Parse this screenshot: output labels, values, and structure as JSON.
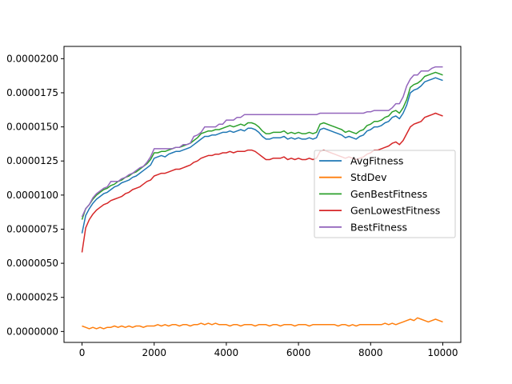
{
  "chart_data": {
    "type": "line",
    "title": "",
    "xlabel": "",
    "ylabel": "",
    "xlim": [
      -500,
      10500
    ],
    "ylim": [
      -8e-07,
      2.09e-05
    ],
    "x_ticks": [
      0,
      2000,
      4000,
      6000,
      8000,
      10000
    ],
    "x_tick_labels": [
      "0",
      "2000",
      "4000",
      "6000",
      "8000",
      "10000"
    ],
    "y_ticks": [
      0.0,
      2.5e-06,
      5e-06,
      7.5e-06,
      1e-05,
      1.25e-05,
      1.5e-05,
      1.75e-05,
      2e-05
    ],
    "y_tick_labels": [
      "0.0000000",
      "0.0000025",
      "0.0000050",
      "0.0000075",
      "0.0000100",
      "0.0000125",
      "0.0000150",
      "0.0000175",
      "0.0000200"
    ],
    "grid": false,
    "legend_position": "center-right",
    "x": [
      0,
      100,
      200,
      300,
      400,
      500,
      600,
      700,
      800,
      900,
      1000,
      1100,
      1200,
      1300,
      1400,
      1500,
      1600,
      1700,
      1800,
      1900,
      2000,
      2100,
      2200,
      2300,
      2400,
      2500,
      2600,
      2700,
      2800,
      2900,
      3000,
      3100,
      3200,
      3300,
      3400,
      3500,
      3600,
      3700,
      3800,
      3900,
      4000,
      4100,
      4200,
      4300,
      4400,
      4500,
      4600,
      4700,
      4800,
      4900,
      5000,
      5100,
      5200,
      5300,
      5400,
      5500,
      5600,
      5700,
      5800,
      5900,
      6000,
      6100,
      6200,
      6300,
      6400,
      6500,
      6600,
      6700,
      6800,
      6900,
      7000,
      7100,
      7200,
      7300,
      7400,
      7500,
      7600,
      7700,
      7800,
      7900,
      8000,
      8100,
      8200,
      8300,
      8400,
      8500,
      8600,
      8700,
      8800,
      8900,
      9000,
      9100,
      9200,
      9300,
      9400,
      9500,
      9600,
      9700,
      9800,
      9900,
      10000
    ],
    "series": [
      {
        "name": "AvgFitness",
        "color": "#1f77b4",
        "values": [
          7.2e-06,
          8.5e-06,
          9e-06,
          9.4e-06,
          9.7e-06,
          9.9e-06,
          1.01e-05,
          1.02e-05,
          1.04e-05,
          1.06e-05,
          1.07e-05,
          1.09e-05,
          1.1e-05,
          1.11e-05,
          1.13e-05,
          1.14e-05,
          1.16e-05,
          1.18e-05,
          1.2e-05,
          1.22e-05,
          1.27e-05,
          1.28e-05,
          1.29e-05,
          1.28e-05,
          1.3e-05,
          1.31e-05,
          1.32e-05,
          1.32e-05,
          1.33e-05,
          1.34e-05,
          1.35e-05,
          1.37e-05,
          1.39e-05,
          1.41e-05,
          1.43e-05,
          1.43e-05,
          1.44e-05,
          1.44e-05,
          1.45e-05,
          1.46e-05,
          1.46e-05,
          1.47e-05,
          1.46e-05,
          1.47e-05,
          1.48e-05,
          1.47e-05,
          1.49e-05,
          1.49e-05,
          1.48e-05,
          1.46e-05,
          1.43e-05,
          1.41e-05,
          1.41e-05,
          1.42e-05,
          1.42e-05,
          1.42e-05,
          1.43e-05,
          1.41e-05,
          1.42e-05,
          1.41e-05,
          1.42e-05,
          1.41e-05,
          1.41e-05,
          1.42e-05,
          1.41e-05,
          1.42e-05,
          1.48e-05,
          1.49e-05,
          1.48e-05,
          1.47e-05,
          1.46e-05,
          1.45e-05,
          1.44e-05,
          1.42e-05,
          1.43e-05,
          1.42e-05,
          1.41e-05,
          1.43e-05,
          1.44e-05,
          1.47e-05,
          1.48e-05,
          1.5e-05,
          1.5e-05,
          1.51e-05,
          1.53e-05,
          1.54e-05,
          1.57e-05,
          1.58e-05,
          1.56e-05,
          1.6e-05,
          1.66e-05,
          1.75e-05,
          1.77e-05,
          1.78e-05,
          1.8e-05,
          1.83e-05,
          1.84e-05,
          1.85e-05,
          1.86e-05,
          1.85e-05,
          1.84e-05
        ]
      },
      {
        "name": "StdDev",
        "color": "#ff7f0e",
        "values": [
          4e-07,
          3e-07,
          2e-07,
          3e-07,
          2e-07,
          3e-07,
          2e-07,
          3e-07,
          3e-07,
          4e-07,
          3e-07,
          4e-07,
          3e-07,
          4e-07,
          3e-07,
          4e-07,
          4e-07,
          3e-07,
          4e-07,
          4e-07,
          4e-07,
          5e-07,
          4e-07,
          5e-07,
          4e-07,
          5e-07,
          5e-07,
          4e-07,
          5e-07,
          5e-07,
          4e-07,
          5e-07,
          5e-07,
          6e-07,
          5e-07,
          6e-07,
          5e-07,
          6e-07,
          5e-07,
          5e-07,
          5e-07,
          4e-07,
          5e-07,
          5e-07,
          4e-07,
          5e-07,
          5e-07,
          5e-07,
          4e-07,
          5e-07,
          5e-07,
          5e-07,
          4e-07,
          5e-07,
          5e-07,
          4e-07,
          5e-07,
          5e-07,
          5e-07,
          4e-07,
          5e-07,
          5e-07,
          5e-07,
          4e-07,
          5e-07,
          5e-07,
          5e-07,
          5e-07,
          5e-07,
          5e-07,
          5e-07,
          4e-07,
          5e-07,
          5e-07,
          4e-07,
          5e-07,
          4e-07,
          5e-07,
          5e-07,
          5e-07,
          5e-07,
          5e-07,
          5e-07,
          5e-07,
          6e-07,
          5e-07,
          6e-07,
          5e-07,
          6e-07,
          7e-07,
          8e-07,
          9e-07,
          8e-07,
          1e-06,
          9e-07,
          8e-07,
          7e-07,
          8e-07,
          9e-07,
          8e-07,
          7e-07
        ]
      },
      {
        "name": "GenBestFitness",
        "color": "#2ca02c",
        "values": [
          8.2e-06,
          9e-06,
          9.3e-06,
          9.7e-06,
          1e-05,
          1.02e-05,
          1.04e-05,
          1.05e-05,
          1.07e-05,
          1.08e-05,
          1.1e-05,
          1.11e-05,
          1.13e-05,
          1.14e-05,
          1.16e-05,
          1.17e-05,
          1.19e-05,
          1.21e-05,
          1.23e-05,
          1.26e-05,
          1.31e-05,
          1.31e-05,
          1.32e-05,
          1.32e-05,
          1.33e-05,
          1.34e-05,
          1.35e-05,
          1.35e-05,
          1.36e-05,
          1.37e-05,
          1.38e-05,
          1.4e-05,
          1.42e-05,
          1.45e-05,
          1.46e-05,
          1.47e-05,
          1.47e-05,
          1.48e-05,
          1.48e-05,
          1.49e-05,
          1.5e-05,
          1.51e-05,
          1.5e-05,
          1.51e-05,
          1.52e-05,
          1.51e-05,
          1.53e-05,
          1.53e-05,
          1.52e-05,
          1.5e-05,
          1.47e-05,
          1.45e-05,
          1.45e-05,
          1.46e-05,
          1.46e-05,
          1.46e-05,
          1.47e-05,
          1.45e-05,
          1.46e-05,
          1.45e-05,
          1.46e-05,
          1.45e-05,
          1.45e-05,
          1.46e-05,
          1.45e-05,
          1.46e-05,
          1.52e-05,
          1.53e-05,
          1.52e-05,
          1.51e-05,
          1.5e-05,
          1.49e-05,
          1.48e-05,
          1.46e-05,
          1.47e-05,
          1.46e-05,
          1.45e-05,
          1.47e-05,
          1.48e-05,
          1.51e-05,
          1.52e-05,
          1.54e-05,
          1.54e-05,
          1.55e-05,
          1.57e-05,
          1.58e-05,
          1.61e-05,
          1.62e-05,
          1.6e-05,
          1.64e-05,
          1.7e-05,
          1.79e-05,
          1.81e-05,
          1.82e-05,
          1.84e-05,
          1.87e-05,
          1.88e-05,
          1.89e-05,
          1.9e-05,
          1.89e-05,
          1.88e-05
        ]
      },
      {
        "name": "GenLowestFitness",
        "color": "#d62728",
        "values": [
          5.8e-06,
          7.6e-06,
          8.2e-06,
          8.6e-06,
          8.9e-06,
          9.1e-06,
          9.3e-06,
          9.4e-06,
          9.6e-06,
          9.7e-06,
          9.8e-06,
          9.9e-06,
          1.01e-05,
          1.02e-05,
          1.04e-05,
          1.05e-05,
          1.06e-05,
          1.08e-05,
          1.1e-05,
          1.11e-05,
          1.14e-05,
          1.15e-05,
          1.16e-05,
          1.16e-05,
          1.17e-05,
          1.18e-05,
          1.19e-05,
          1.19e-05,
          1.2e-05,
          1.21e-05,
          1.22e-05,
          1.24e-05,
          1.25e-05,
          1.27e-05,
          1.28e-05,
          1.29e-05,
          1.29e-05,
          1.3e-05,
          1.3e-05,
          1.31e-05,
          1.31e-05,
          1.32e-05,
          1.31e-05,
          1.32e-05,
          1.32e-05,
          1.32e-05,
          1.33e-05,
          1.33e-05,
          1.32e-05,
          1.3e-05,
          1.28e-05,
          1.26e-05,
          1.26e-05,
          1.27e-05,
          1.27e-05,
          1.27e-05,
          1.28e-05,
          1.26e-05,
          1.27e-05,
          1.26e-05,
          1.27e-05,
          1.26e-05,
          1.26e-05,
          1.27e-05,
          1.26e-05,
          1.27e-05,
          1.32e-05,
          1.33e-05,
          1.32e-05,
          1.31e-05,
          1.3e-05,
          1.29e-05,
          1.28e-05,
          1.27e-05,
          1.28e-05,
          1.27e-05,
          1.26e-05,
          1.27e-05,
          1.28e-05,
          1.3e-05,
          1.31e-05,
          1.33e-05,
          1.33e-05,
          1.34e-05,
          1.35e-05,
          1.36e-05,
          1.38e-05,
          1.39e-05,
          1.37e-05,
          1.4e-05,
          1.45e-05,
          1.5e-05,
          1.52e-05,
          1.53e-05,
          1.54e-05,
          1.57e-05,
          1.58e-05,
          1.59e-05,
          1.6e-05,
          1.59e-05,
          1.58e-05
        ]
      },
      {
        "name": "BestFitness",
        "color": "#9467bd",
        "values": [
          8.4e-06,
          9e-06,
          9.3e-06,
          9.8e-06,
          1.01e-05,
          1.03e-05,
          1.05e-05,
          1.06e-05,
          1.1e-05,
          1.1e-05,
          1.1e-05,
          1.12e-05,
          1.13e-05,
          1.15e-05,
          1.16e-05,
          1.18e-05,
          1.2e-05,
          1.21e-05,
          1.24e-05,
          1.28e-05,
          1.34e-05,
          1.34e-05,
          1.34e-05,
          1.34e-05,
          1.34e-05,
          1.34e-05,
          1.35e-05,
          1.35e-05,
          1.37e-05,
          1.37e-05,
          1.38e-05,
          1.43e-05,
          1.44e-05,
          1.46e-05,
          1.5e-05,
          1.5e-05,
          1.5e-05,
          1.5e-05,
          1.52e-05,
          1.52e-05,
          1.55e-05,
          1.55e-05,
          1.55e-05,
          1.57e-05,
          1.57e-05,
          1.59e-05,
          1.59e-05,
          1.59e-05,
          1.59e-05,
          1.59e-05,
          1.59e-05,
          1.59e-05,
          1.59e-05,
          1.59e-05,
          1.59e-05,
          1.59e-05,
          1.59e-05,
          1.59e-05,
          1.59e-05,
          1.59e-05,
          1.59e-05,
          1.59e-05,
          1.59e-05,
          1.59e-05,
          1.59e-05,
          1.59e-05,
          1.6e-05,
          1.6e-05,
          1.6e-05,
          1.6e-05,
          1.6e-05,
          1.6e-05,
          1.6e-05,
          1.6e-05,
          1.6e-05,
          1.6e-05,
          1.6e-05,
          1.6e-05,
          1.6e-05,
          1.61e-05,
          1.61e-05,
          1.62e-05,
          1.62e-05,
          1.62e-05,
          1.62e-05,
          1.62e-05,
          1.64e-05,
          1.67e-05,
          1.67e-05,
          1.72e-05,
          1.8e-05,
          1.85e-05,
          1.88e-05,
          1.88e-05,
          1.91e-05,
          1.91e-05,
          1.91e-05,
          1.93e-05,
          1.94e-05,
          1.94e-05,
          1.94e-05
        ]
      }
    ]
  }
}
